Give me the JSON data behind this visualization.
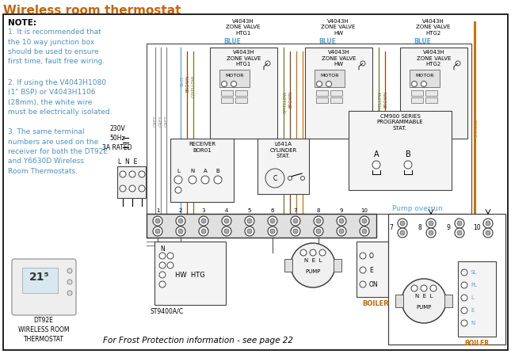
{
  "title": "Wireless room thermostat",
  "title_color": "#c8640a",
  "bg_color": "#ffffff",
  "note_bold": "NOTE:",
  "note1": "1. It is recommended that\nthe 10 way junction box\nshould be used to ensure\nfirst time, fault free wiring.",
  "note2": "2. If using the V4043H1080\n(1\" BSP) or V4043H1106\n(28mm), the white wire\nmust be electrically isolated.",
  "note3": "3. The same terminal\nnumbers are used on the\nreceiver for both the DT92E\nand Y6630D Wireless\nRoom Thermostats.",
  "frost_text": "For Frost Protection information - see page 22",
  "pump_overrun": "Pump overrun",
  "dt92e_label": "DT92E\nWIRELESS ROOM\nTHERMOSTAT",
  "v4043h_htg1": "V4043H\nZONE VALVE\nHTG1",
  "v4043h_hw": "V4043H\nZONE VALVE\nHW",
  "v4043h_htg2": "V4043H\nZONE VALVE\nHTG2",
  "cm900": "CM900 SERIES\nPROGRAMMABLE\nSTAT.",
  "l641a": "L641A\nCYLINDER\nSTAT.",
  "receiver": "RECEIVER\nBOR01",
  "st9400": "ST9400A/C",
  "power_label": "230V\n50Hz\n3A RATED",
  "lne": "L  N  E",
  "boiler_label": "BOILER",
  "hwhtg_label": "HW HTG",
  "col_grey": "#888888",
  "col_blue": "#5aa0d0",
  "col_brown": "#8B4513",
  "col_orange": "#d07000",
  "col_gyellow": "#6a7a20",
  "col_black": "#000000",
  "col_lgrey": "#cccccc",
  "col_dgrey": "#555555",
  "col_note": "#5090c0",
  "col_orange_label": "#c06800"
}
